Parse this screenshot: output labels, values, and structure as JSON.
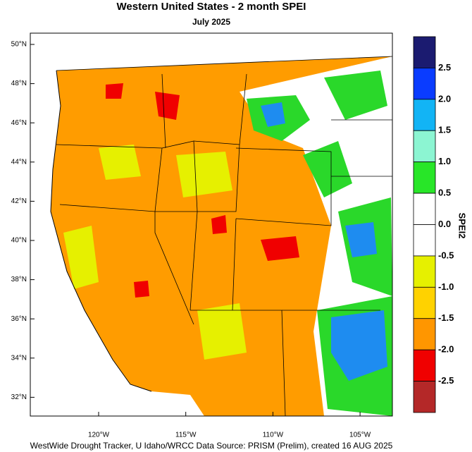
{
  "title": "Western United States - 2 month SPEI",
  "subtitle": "July 2025",
  "latitude_labels": [
    "50°N",
    "48°N",
    "46°N",
    "44°N",
    "42°N",
    "40°N",
    "38°N",
    "36°N",
    "34°N",
    "32°N"
  ],
  "longitude_labels": [
    "120°W",
    "115°W",
    "110°W",
    "105°W"
  ],
  "colorbar": {
    "title": "SPEI2",
    "labels": [
      "2.5",
      "2.0",
      "1.5",
      "1.0",
      "0.5",
      "0.0",
      "-0.5",
      "-1.0",
      "-1.5",
      "-2.0",
      "-2.5"
    ],
    "colors": [
      "#1b1b70",
      "#0a3cff",
      "#12b4f5",
      "#8cf5d2",
      "#28e628",
      "#ffffff",
      "#ffffff",
      "#e6f000",
      "#ffd200",
      "#ff9600",
      "#f00000",
      "#b42828"
    ]
  },
  "footer": "WestWide Drought Tracker, U Idaho/WRCC Data Source: PRISM (Prelim), created 16 AUG 2025"
}
